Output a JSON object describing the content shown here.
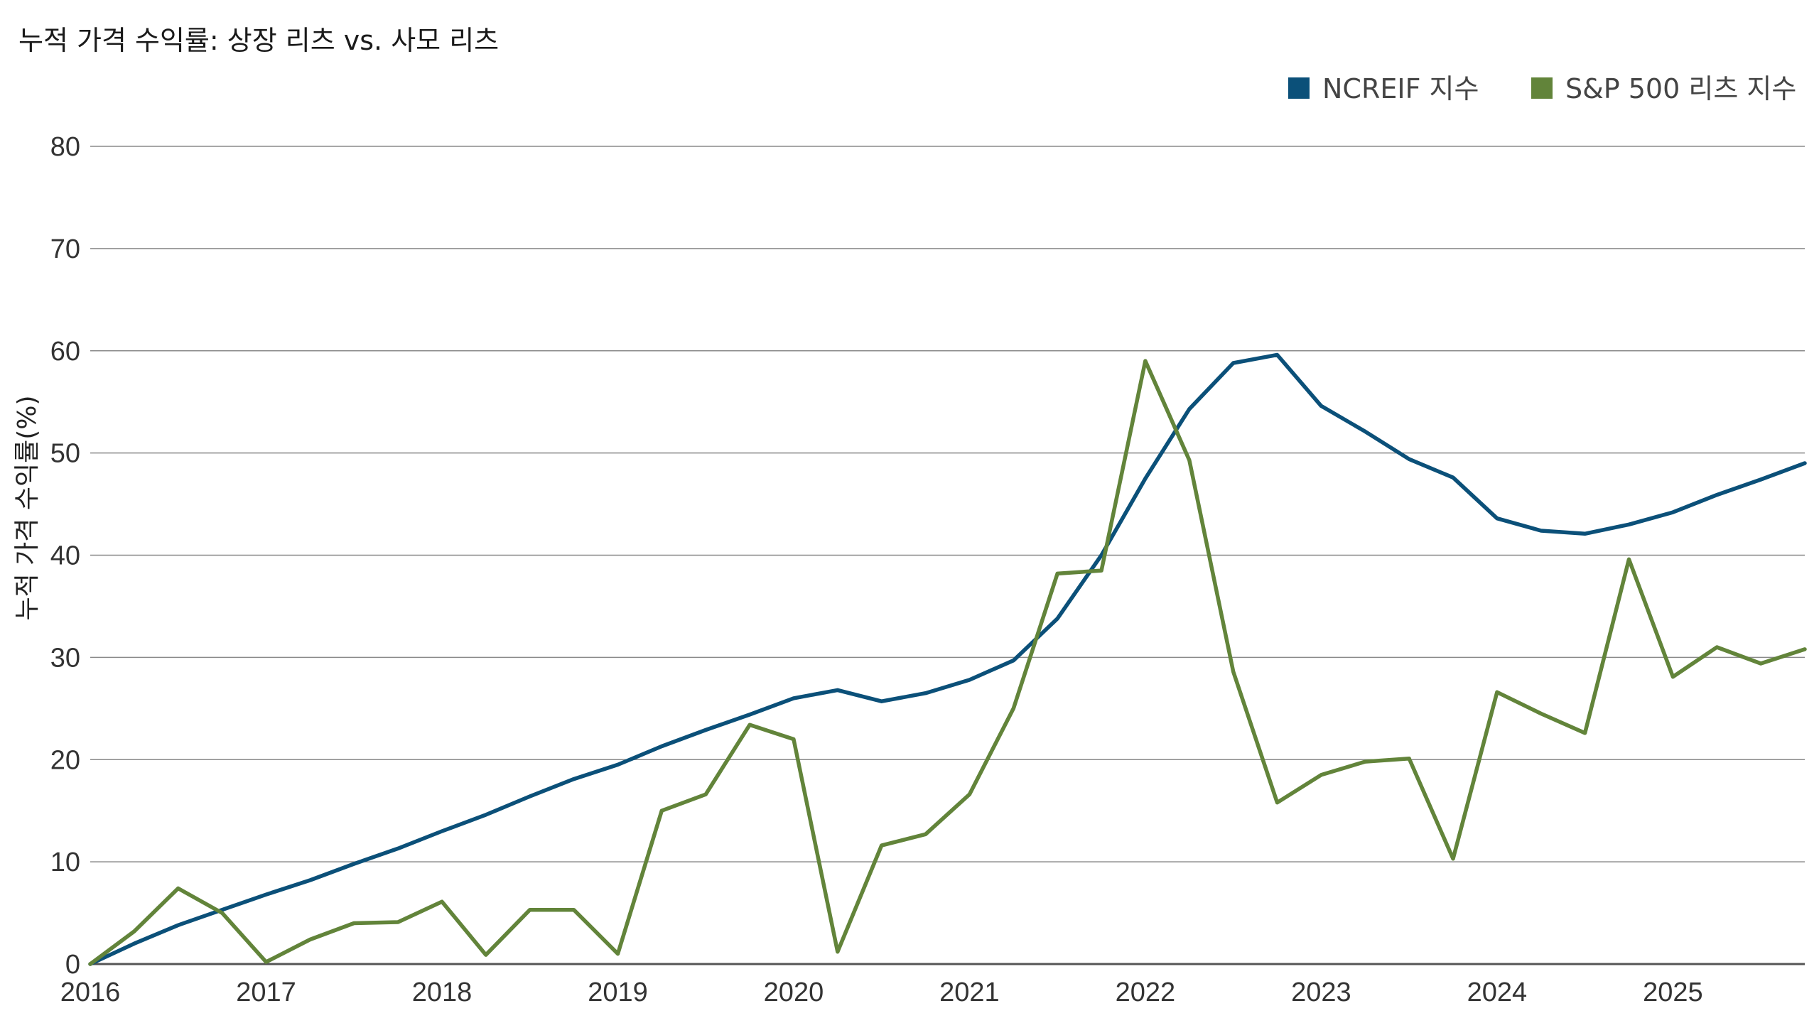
{
  "chart_data": {
    "type": "line",
    "title": "누적 가격 수익률: 상장 리츠 vs. 사모 리츠",
    "xlabel": "",
    "ylabel": "누적 가격 수익률(%)",
    "ylim": [
      0,
      80
    ],
    "yticks": [
      "0",
      "10",
      "20",
      "30",
      "40",
      "50",
      "60",
      "70",
      "80"
    ],
    "xlim": [
      2016,
      2025.75
    ],
    "xticks": [
      "2016",
      "2017",
      "2018",
      "2019",
      "2020",
      "2021",
      "2022",
      "2023",
      "2024",
      "2025"
    ],
    "grid": "horizontal",
    "legend_position": "top-right",
    "series": [
      {
        "name": "NCREIF 지수",
        "color": "#0b5079",
        "x": [
          2016,
          2016.25,
          2016.5,
          2016.75,
          2017,
          2017.25,
          2017.5,
          2017.75,
          2018,
          2018.25,
          2018.5,
          2018.75,
          2019,
          2019.25,
          2019.5,
          2019.75,
          2020,
          2020.25,
          2020.5,
          2020.75,
          2021,
          2021.25,
          2021.5,
          2021.75,
          2022,
          2022.25,
          2022.5,
          2022.75,
          2023,
          2023.25,
          2023.5,
          2023.75,
          2024,
          2024.25,
          2024.5,
          2024.75,
          2025,
          2025.25,
          2025.5,
          2025.75
        ],
        "values": [
          0,
          2.0,
          3.8,
          5.3,
          6.8,
          8.2,
          9.8,
          11.3,
          13.0,
          14.6,
          16.4,
          18.1,
          19.5,
          21.3,
          22.9,
          24.4,
          26.0,
          26.8,
          25.7,
          26.5,
          27.8,
          29.7,
          33.8,
          40.0,
          47.5,
          54.3,
          58.8,
          59.6,
          54.6,
          52.1,
          49.4,
          47.6,
          43.6,
          42.4,
          42.1,
          43.0,
          44.2,
          45.9,
          47.4,
          49.0
        ]
      },
      {
        "name": "S&P 500 리츠 지수",
        "color": "#62843a",
        "x": [
          2016,
          2016.25,
          2016.5,
          2016.75,
          2017,
          2017.25,
          2017.5,
          2017.75,
          2018,
          2018.25,
          2018.5,
          2018.75,
          2019,
          2019.25,
          2019.5,
          2019.75,
          2020,
          2020.25,
          2020.5,
          2020.75,
          2021,
          2021.25,
          2021.5,
          2021.75,
          2022,
          2022.25,
          2022.5,
          2022.75,
          2023,
          2023.25,
          2023.5,
          2023.75,
          2024,
          2024.25,
          2024.5,
          2024.75,
          2025,
          2025.25,
          2025.5,
          2025.75
        ],
        "values": [
          0,
          3.2,
          7.4,
          5.0,
          0.2,
          2.4,
          4.0,
          4.1,
          6.1,
          0.9,
          5.3,
          5.3,
          1.0,
          15.0,
          16.6,
          23.4,
          22.0,
          1.2,
          11.6,
          12.7,
          16.6,
          25.0,
          38.2,
          38.5,
          59.0,
          49.3,
          28.6,
          15.8,
          18.5,
          19.8,
          20.1,
          10.3,
          26.6,
          24.5,
          22.6,
          39.6,
          28.1,
          31.0,
          29.4,
          30.8
        ]
      }
    ]
  }
}
